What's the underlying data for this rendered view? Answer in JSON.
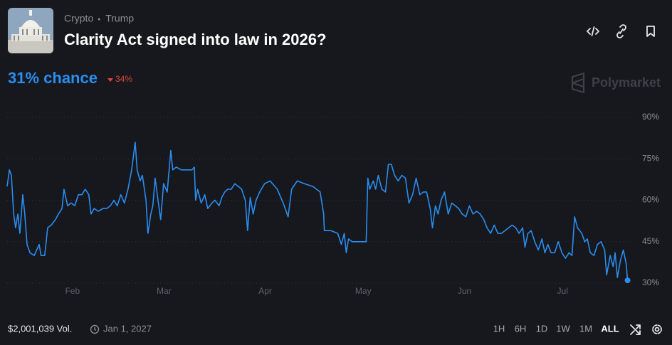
{
  "header": {
    "tags": [
      "Crypto",
      "Trump"
    ],
    "title": "Clarity Act signed into law in 2026?",
    "chance": {
      "value": 31,
      "label": "31% chance"
    },
    "change": {
      "value": 34,
      "label": "34%",
      "direction": "down"
    },
    "brand": "Polymarket"
  },
  "chart_data": {
    "type": "line",
    "color": "#2a8df0",
    "grid": true,
    "end_marker": true,
    "x": [
      11.0,
      11.7,
      12.3,
      13.0,
      13.6,
      14.3,
      14.9,
      15.8,
      16.4,
      17.1,
      18.0,
      19.3,
      20.8,
      21.4,
      22.5,
      23.4,
      24.5,
      25.8,
      26.7,
      27.8,
      28.4,
      29.5,
      30.6,
      31.7,
      32.8,
      33.9,
      34.9,
      36.0,
      36.7,
      37.6,
      38.9,
      40.4,
      41.5,
      42.6,
      43.7,
      44.7,
      45.8,
      46.9,
      48.0,
      49.1,
      50.2,
      50.8,
      51.7,
      52.4,
      53.5,
      54.1,
      55.0,
      55.6,
      56.3,
      57.2,
      58.0,
      58.9,
      60.0,
      61.1,
      61.7,
      62.8,
      64.3,
      65.4,
      66.5,
      67.6,
      68.3,
      68.7,
      69.3,
      70.4,
      71.5,
      72.4,
      73.7,
      74.6,
      75.9,
      76.7,
      77.6,
      78.5,
      79.6,
      80.7,
      81.8,
      82.8,
      83.9,
      84.6,
      85.4,
      86.3,
      87.2,
      88.3,
      89.8,
      91.5,
      93.7,
      95.5,
      97.0,
      98.1,
      99.8,
      102.0,
      104.6,
      106.8,
      107.9,
      108.1,
      110.1,
      112.2,
      113.3,
      114.2,
      114.8,
      115.5,
      116.6,
      117.7,
      118.8,
      120.9,
      121.4,
      122.0,
      123.1,
      123.8,
      124.6,
      125.7,
      126.8,
      127.7,
      128.6,
      129.6,
      130.7,
      131.8,
      132.9,
      134.0,
      135.1,
      136.2,
      137.3,
      138.4,
      139.4,
      140.5,
      141.2,
      142.1,
      142.9,
      143.8,
      144.9,
      146.0,
      147.1,
      148.2,
      149.2,
      150.3,
      151.4,
      152.5,
      153.6,
      154.7,
      155.8,
      156.9,
      157.9,
      159.0,
      160.1,
      161.2,
      162.3,
      163.4,
      164.5,
      165.6,
      166.7,
      167.7,
      168.8,
      169.5,
      170.4,
      171.4,
      172.5,
      173.6,
      174.7,
      175.6,
      176.5,
      177.5,
      178.6,
      179.7,
      180.8,
      181.9,
      183.0,
      183.9,
      184.7,
      185.6,
      186.9,
      187.8,
      188.6,
      189.5,
      190.6,
      191.7,
      192.8,
      193.9,
      194.5,
      195.6,
      196.5,
      197.1,
      197.8,
      198.7,
      199.6,
      200.5,
      200.9
    ],
    "values": [
      65,
      71,
      69,
      55,
      50,
      55,
      48,
      62,
      55,
      44,
      41,
      40,
      44,
      40,
      40,
      50,
      51,
      53,
      55,
      57,
      64,
      58,
      59,
      58,
      62,
      62,
      64,
      62,
      55,
      57,
      56,
      57,
      57,
      58,
      60,
      58,
      62,
      59,
      64,
      71,
      81,
      71,
      67,
      69,
      60,
      48,
      55,
      58,
      68,
      60,
      53,
      66,
      63,
      78,
      71,
      72,
      71,
      71,
      71,
      71,
      72,
      60,
      64,
      59,
      62,
      57,
      59,
      60,
      58,
      61,
      63,
      64,
      64,
      66,
      65,
      64,
      60,
      49,
      61,
      55,
      60,
      63,
      66,
      67,
      64,
      59,
      54,
      64,
      67,
      66,
      65,
      63,
      55,
      49,
      49,
      48,
      44,
      48,
      41,
      46,
      45,
      45,
      45,
      45,
      68,
      64,
      67,
      64,
      69,
      64,
      63,
      73,
      73,
      69,
      67,
      69,
      68,
      59,
      62,
      68,
      62,
      63,
      63,
      57,
      50,
      58,
      55,
      60,
      63,
      55,
      59,
      58,
      57,
      55,
      54,
      58,
      55,
      56,
      55,
      53,
      50,
      48,
      51,
      48,
      48,
      49,
      50,
      51,
      50,
      48,
      50,
      43,
      48,
      49,
      45,
      42,
      46,
      41,
      44,
      41,
      41,
      45,
      41,
      39,
      41,
      40,
      54,
      50,
      48,
      45,
      46,
      41,
      40,
      44,
      45,
      42,
      33,
      40,
      36,
      41,
      32,
      38,
      42,
      37,
      31
    ],
    "xlim": [
      11,
      201
    ],
    "xticks": [
      {
        "value": 31,
        "label": "Feb"
      },
      {
        "value": 59,
        "label": "Mar"
      },
      {
        "value": 90,
        "label": "Apr"
      },
      {
        "value": 120,
        "label": "May"
      },
      {
        "value": 151,
        "label": "Jun"
      },
      {
        "value": 181,
        "label": "Jul"
      }
    ],
    "ylim": [
      30,
      90
    ],
    "yticks": [
      {
        "value": 30,
        "label": "30%"
      },
      {
        "value": 45,
        "label": "45%"
      },
      {
        "value": 60,
        "label": "60%"
      },
      {
        "value": 75,
        "label": "75%"
      },
      {
        "value": 90,
        "label": "90%"
      }
    ]
  },
  "footer": {
    "volume": {
      "value": 2001039,
      "label": "$2,001,039 Vol."
    },
    "end_date": "Jan 1, 2027",
    "ranges": [
      "1H",
      "6H",
      "1D",
      "1W",
      "1M",
      "ALL"
    ],
    "selected_range": "ALL"
  }
}
